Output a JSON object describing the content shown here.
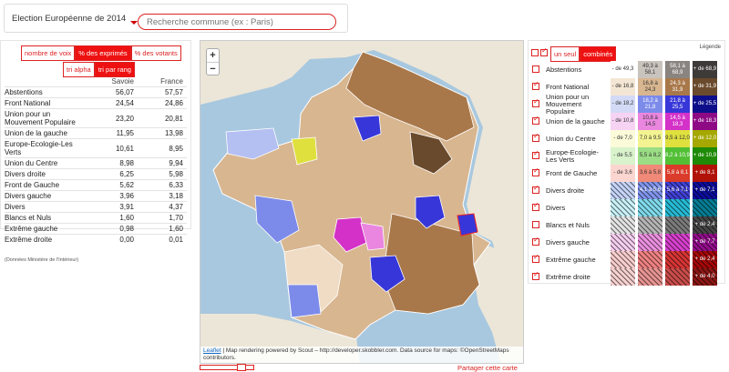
{
  "header": {
    "election_label": "Election Européenne de 2014",
    "search_placeholder": "Recherche commune (ex : Paris)"
  },
  "view_buttons": {
    "nombre_de_voix": "nombre de voix",
    "pct_exprimes": "% des exprimés",
    "pct_votants": "% des votants"
  },
  "sort_buttons": {
    "tri_alpha": "tri alpha",
    "tri_par_rang": "tri par rang"
  },
  "table": {
    "col_local": "Savoie",
    "col_national": "France",
    "rows": [
      {
        "label": "Abstentions",
        "local": "56,07",
        "national": "57,57"
      },
      {
        "label": "Front National",
        "local": "24,54",
        "national": "24,86"
      },
      {
        "label": "Union pour un Mouvement Populaire",
        "local": "23,20",
        "national": "20,81"
      },
      {
        "label": "Union de la gauche",
        "local": "11,95",
        "national": "13,98"
      },
      {
        "label": "Europe-Ecologie-Les Verts",
        "local": "10,61",
        "national": "8,95"
      },
      {
        "label": "Union du Centre",
        "local": "8,98",
        "national": "9,94"
      },
      {
        "label": "Divers droite",
        "local": "6,25",
        "national": "5,98"
      },
      {
        "label": "Front de Gauche",
        "local": "5,62",
        "national": "6,33"
      },
      {
        "label": "Divers gauche",
        "local": "3,96",
        "national": "3,18"
      },
      {
        "label": "Divers",
        "local": "3,91",
        "national": "4,37"
      },
      {
        "label": "Blancs et Nuls",
        "local": "1,60",
        "national": "1,70"
      },
      {
        "label": "Extrême gauche",
        "local": "0,98",
        "national": "1,60"
      },
      {
        "label": "Extrême droite",
        "local": "0,00",
        "national": "0,01"
      }
    ],
    "source_note": "(Données Ministère de l'Intérieur)"
  },
  "map": {
    "zoom_in": "+",
    "zoom_out": "−",
    "attribution_link": "Leaflet",
    "attribution_text": " | Map rendering powered by Scout – http://developer.skobbler.com. Data source for maps: ©OpenStreetMaps contributors.",
    "share_label": "Partager cette carte"
  },
  "legend": {
    "mode_single": "un seul",
    "mode_combined": "combinés",
    "legend_link": "Légende",
    "rows": [
      {
        "label": "Abstentions",
        "checked": false,
        "hatched": false,
        "colors": [
          "#ffffff",
          "#c9c3bd",
          "#8a8480",
          "#3d3a38"
        ],
        "dark": [
          false,
          false,
          true,
          true
        ],
        "texts": [
          "- de 49,3",
          "49,3 à 58,1",
          "58,1 à 68,9",
          "+ de 68,9"
        ]
      },
      {
        "label": "Front National",
        "checked": true,
        "hatched": false,
        "colors": [
          "#f4e6d4",
          "#d8b690",
          "#a9784a",
          "#6a4a2c"
        ],
        "dark": [
          false,
          false,
          true,
          true
        ],
        "texts": [
          "- de 16,8",
          "16,8 à 24,3",
          "24,3 à 31,9",
          "+ de 31,9"
        ]
      },
      {
        "label": "Union pour un Mouvement Populaire",
        "checked": true,
        "hatched": false,
        "colors": [
          "#d3daf6",
          "#7c8bea",
          "#3737d9",
          "#0d0f8a"
        ],
        "dark": [
          false,
          true,
          true,
          true
        ],
        "texts": [
          "- de 18,2",
          "18,2 à 21,8",
          "21,8 à 25,5",
          "+ de 25,5"
        ]
      },
      {
        "label": "Union de la gauche",
        "checked": true,
        "hatched": false,
        "colors": [
          "#f7d3f3",
          "#ea86df",
          "#d431c8",
          "#8e0a85"
        ],
        "dark": [
          false,
          false,
          true,
          true
        ],
        "texts": [
          "- de 10,8",
          "10,8 à 14,5",
          "14,5 à 18,3",
          "+ de 18,3"
        ]
      },
      {
        "label": "Union du Centre",
        "checked": true,
        "hatched": false,
        "colors": [
          "#fbfbd9",
          "#f3f392",
          "#dfe03e",
          "#a4a800"
        ],
        "dark": [
          false,
          false,
          false,
          true
        ],
        "texts": [
          "- de 7,0",
          "7,0 à 9,5",
          "9,5 à 12,0",
          "+ de 12,0"
        ]
      },
      {
        "label": "Europe-Ecologie-Les Verts",
        "checked": true,
        "hatched": false,
        "colors": [
          "#d9f3cc",
          "#9bdd84",
          "#52bf35",
          "#1e8a07"
        ],
        "dark": [
          false,
          false,
          true,
          true
        ],
        "texts": [
          "- de 5,5",
          "5,5 à 8,2",
          "8,2 à 10,9",
          "+ de 10,9"
        ]
      },
      {
        "label": "Front de Gauche",
        "checked": true,
        "hatched": false,
        "colors": [
          "#fbd6d0",
          "#f08978",
          "#da3b2a",
          "#b01208"
        ],
        "dark": [
          false,
          false,
          true,
          true
        ],
        "texts": [
          "- de 3,6",
          "3,6 à 5,8",
          "5,8 à 8,1",
          "+ de 8,1"
        ]
      },
      {
        "label": "Divers droite",
        "checked": true,
        "hatched": true,
        "colors": [
          "#c4d2f6",
          "#7f93ea",
          "#4040d3",
          "#0d0d9b"
        ],
        "dark": [
          false,
          true,
          true,
          true
        ],
        "texts": [
          "",
          "4,1 à 5,6",
          "5,6 à 7,1",
          "+ de 7,1"
        ]
      },
      {
        "label": "Divers",
        "checked": true,
        "hatched": true,
        "colors": [
          "#c7f0f6",
          "#7fd9ea",
          "#26b9d3",
          "#077c93"
        ],
        "dark": [
          false,
          false,
          true,
          true
        ],
        "texts": [
          "",
          "",
          "",
          ""
        ]
      },
      {
        "label": "Blancs et Nuls",
        "checked": false,
        "hatched": true,
        "colors": [
          "#e2e2e2",
          "#b4b4b4",
          "#7a7a7a",
          "#454545"
        ],
        "dark": [
          false,
          false,
          true,
          true
        ],
        "texts": [
          "",
          "",
          "",
          "+ de 2,4"
        ]
      },
      {
        "label": "Divers gauche",
        "checked": true,
        "hatched": true,
        "colors": [
          "#f4cdee",
          "#ea8ede",
          "#d63fcc",
          "#920d8a"
        ],
        "dark": [
          false,
          false,
          true,
          true
        ],
        "texts": [
          "",
          "",
          "",
          "+ de 7,7"
        ]
      },
      {
        "label": "Extrême gauche",
        "checked": true,
        "hatched": true,
        "colors": [
          "#f7cccc",
          "#ee8080",
          "#d63434",
          "#a30808"
        ],
        "dark": [
          false,
          false,
          true,
          true
        ],
        "texts": [
          "",
          "",
          "",
          "+ de 2,4"
        ]
      },
      {
        "label": "Extrême droite",
        "checked": true,
        "hatched": true,
        "colors": [
          "#f4d0cf",
          "#e69391",
          "#c94c4a",
          "#8a1714"
        ],
        "dark": [
          false,
          false,
          true,
          true
        ],
        "texts": [
          "",
          "",
          "",
          "+ de 4,0"
        ]
      }
    ]
  }
}
